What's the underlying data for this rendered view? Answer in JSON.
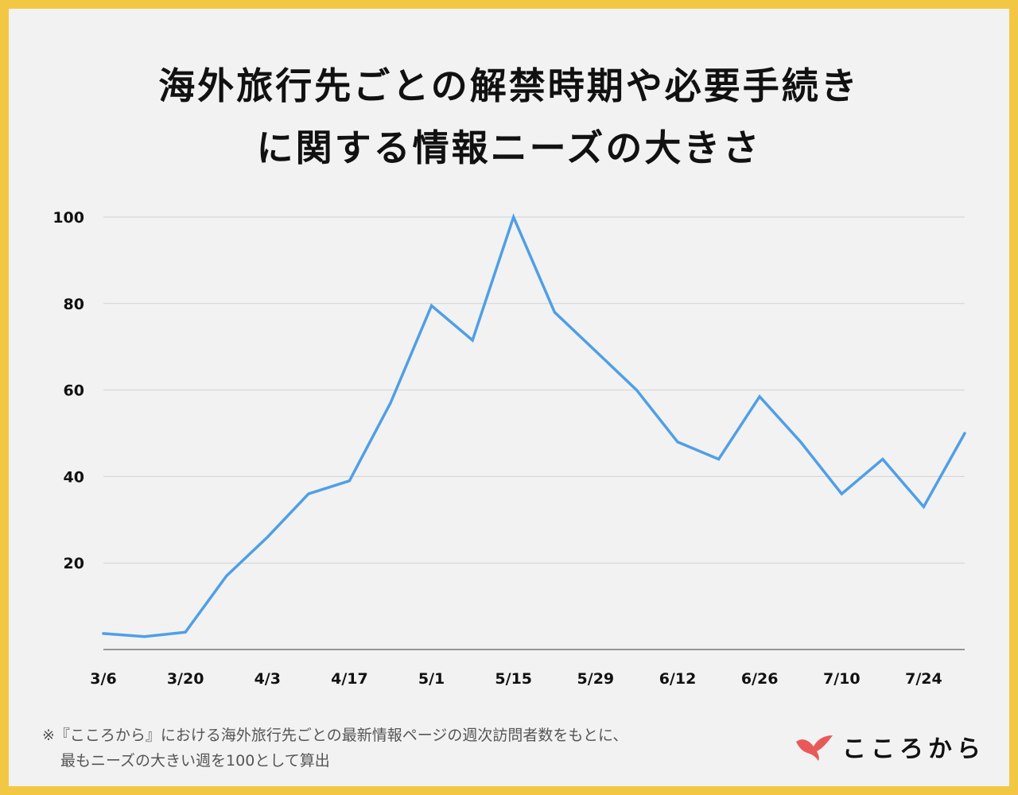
{
  "title_line1": "海外旅行先ごとの解禁時期や必要手続き",
  "title_line2": "に関する情報ニーズの大きさ",
  "note_line1": "※『こころから』における海外旅行先ごとの最新情報ページの週次訪問者数をもとに、",
  "note_line2": "最もニーズの大きい週を100として算出",
  "logo_text": "こころから",
  "colors": {
    "line": "#4f9fe6",
    "frame": "#f2c744",
    "logo_mark": "#e85a5a"
  },
  "chart_data": {
    "type": "line",
    "title": "海外旅行先ごとの解禁時期や必要手続きに関する情報ニーズの大きさ",
    "x_tick_labels": [
      "3/6",
      "3/20",
      "4/3",
      "4/17",
      "5/1",
      "5/15",
      "5/29",
      "6/12",
      "6/26",
      "7/10",
      "7/24"
    ],
    "y_ticks": [
      20,
      40,
      60,
      80,
      100
    ],
    "ylim": [
      0,
      100
    ],
    "grid": true,
    "x": [
      "3/6",
      "3/13",
      "3/20",
      "3/27",
      "4/3",
      "4/10",
      "4/17",
      "4/24",
      "5/1",
      "5/8",
      "5/15",
      "5/22",
      "5/29",
      "6/5",
      "6/12",
      "6/19",
      "6/26",
      "7/3",
      "7/10",
      "7/17",
      "7/24",
      "7/31"
    ],
    "values": [
      3.7,
      3.0,
      4.0,
      17,
      26,
      36,
      39,
      57,
      79.5,
      71.5,
      100,
      78,
      69,
      60,
      48,
      44,
      58.5,
      48,
      36,
      44,
      33,
      50
    ]
  }
}
